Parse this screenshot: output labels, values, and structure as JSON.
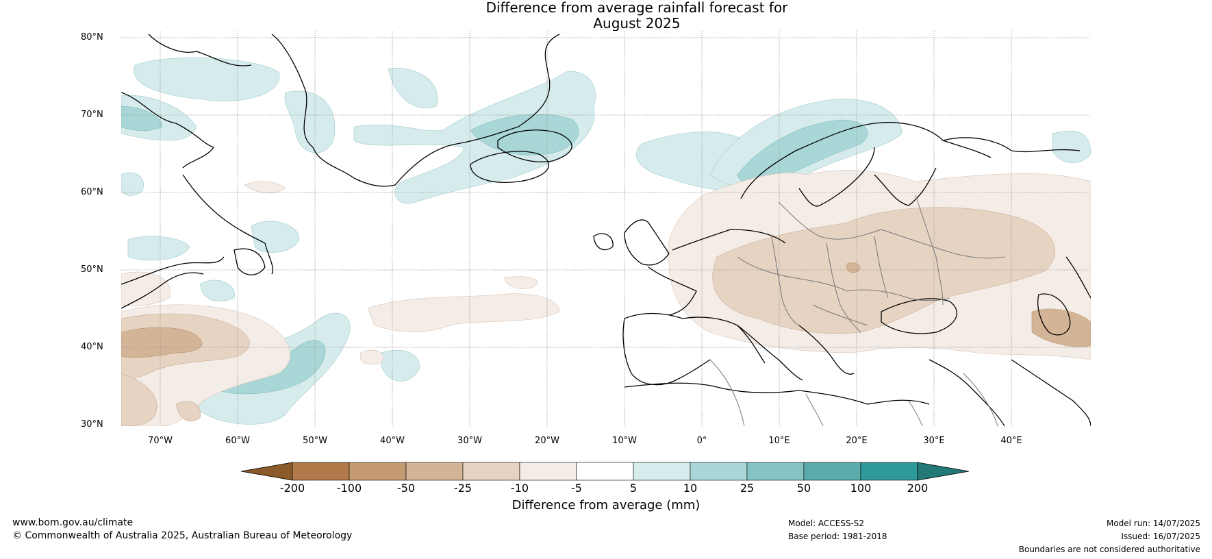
{
  "title": {
    "line1": "Difference from average rainfall forecast for",
    "line2": "August 2025"
  },
  "latitudes": [
    "80°N",
    "70°N",
    "60°N",
    "50°N",
    "40°N",
    "30°N"
  ],
  "longitudes": [
    "70°W",
    "60°W",
    "50°W",
    "40°W",
    "30°W",
    "20°W",
    "10°W",
    "0°",
    "10°E",
    "20°E",
    "30°E",
    "40°E"
  ],
  "colorbar": {
    "labels": [
      "-200",
      "-100",
      "-50",
      "-25",
      "-10",
      "-5",
      "5",
      "10",
      "25",
      "50",
      "100",
      "200"
    ],
    "colors": [
      "#8b5a2b",
      "#b07a4a",
      "#c49a72",
      "#d4b496",
      "#e6d3c2",
      "#f4ece6",
      "#ffffff",
      "#d6ecec",
      "#a9d7d7",
      "#84c4c4",
      "#5aabab",
      "#2f9999",
      "#237878"
    ],
    "title": "Difference from average (mm)"
  },
  "footer": {
    "url": "www.bom.gov.au/climate",
    "copyright": "© Commonwealth of Australia 2025, Australian Bureau of Meteorology",
    "model": "Model: ACCESS-S2",
    "base_period": "Base period: 1981-2018",
    "model_run": "Model run: 14/07/2025",
    "issued": "Issued: 16/07/2025",
    "disclaimer": "Boundaries are not considered authoritative"
  }
}
